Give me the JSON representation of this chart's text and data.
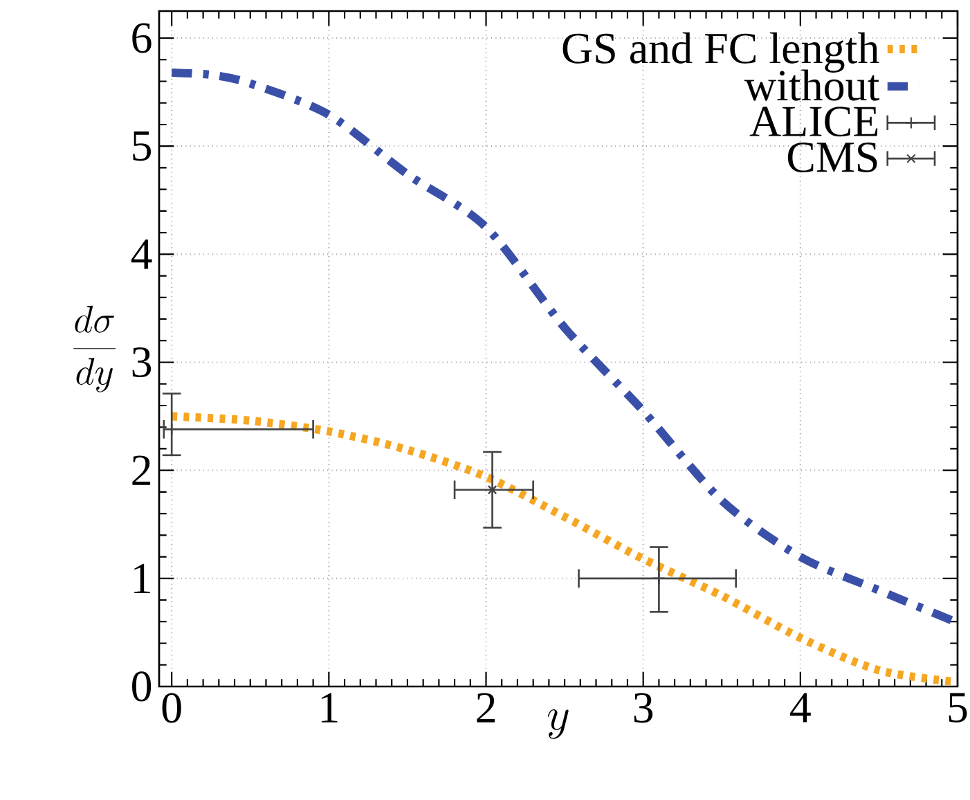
{
  "chart_data": {
    "type": "line",
    "xlabel": "y",
    "ylabel": "\\frac{d\\sigma}{dy}",
    "xlim": [
      -0.08,
      5
    ],
    "ylim": [
      0,
      6.25
    ],
    "xticks": [
      0,
      1,
      2,
      3,
      4,
      5
    ],
    "yticks": [
      0,
      1,
      2,
      3,
      4,
      5,
      6
    ],
    "grid": true,
    "legend": "top right",
    "series": [
      {
        "name": "GS and FC length",
        "color": "#f5a623",
        "line_style": "dotted",
        "marker": "none",
        "x": [
          0,
          0.5,
          1,
          1.5,
          2,
          2.5,
          3,
          3.5,
          4,
          4.5,
          5
        ],
        "values": [
          2.5,
          2.46,
          2.36,
          2.19,
          1.94,
          1.57,
          1.18,
          0.84,
          0.45,
          0.15,
          0.04
        ]
      },
      {
        "name": "without",
        "color": "#3a50a8",
        "line_style": "dashdot",
        "marker": "none",
        "x": [
          0,
          0.25,
          0.5,
          1,
          1.5,
          2,
          2.5,
          3,
          3.5,
          4,
          4.5,
          5
        ],
        "values": [
          5.68,
          5.66,
          5.58,
          5.29,
          4.74,
          4.25,
          3.32,
          2.55,
          1.72,
          1.2,
          0.89,
          0.59
        ]
      },
      {
        "name": "ALICE",
        "type": "scatter",
        "color": "#444444",
        "marker": "plus",
        "x": [
          0,
          3.1
        ],
        "values": [
          2.38,
          1.0
        ],
        "errors": [
          [
            2.14,
            2.71
          ],
          [
            0.69,
            1.29
          ]
        ],
        "xerrors": [
          [
            -0.05,
            0.9
          ],
          [
            2.59,
            3.59
          ]
        ]
      },
      {
        "name": "CMS",
        "type": "scatter",
        "color": "#444444",
        "marker": "cross",
        "x": [
          2.04
        ],
        "values": [
          1.82
        ],
        "errors": [
          [
            1.47,
            2.17
          ]
        ],
        "xerrors": [
          [
            1.8,
            2.3
          ]
        ]
      }
    ]
  }
}
